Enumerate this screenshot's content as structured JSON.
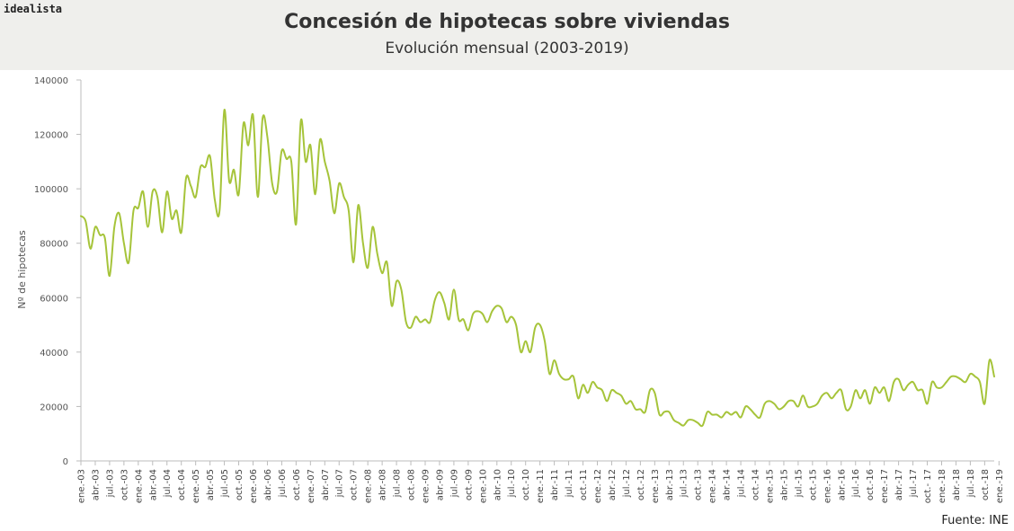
{
  "header": {
    "brand": "idealista",
    "title": "Concesión de hipotecas sobre viviendas",
    "subtitle": "Evolución mensual (2003-2019)"
  },
  "footer": {
    "source": "Fuente: INE"
  },
  "colors": {
    "line": "#a6c43a",
    "axis": "#bcbcbc",
    "header_bg": "#efefec"
  },
  "chart_data": {
    "type": "line",
    "title": "Concesión de hipotecas sobre viviendas",
    "subtitle": "Evolución mensual (2003-2019)",
    "xlabel": "",
    "ylabel": "Nº de hipotecas",
    "ylim": [
      0,
      140000
    ],
    "yticks": [
      0,
      20000,
      40000,
      60000,
      80000,
      100000,
      120000,
      140000
    ],
    "grid": false,
    "legend": "none",
    "x_tick_labels": [
      "ene.-03",
      "abr.-03",
      "jul.-03",
      "oct.-03",
      "ene.-04",
      "abr.-04",
      "jul.-04",
      "oct.-04",
      "ene.-05",
      "abr.-05",
      "jul.-05",
      "oct.-05",
      "ene.-06",
      "abr.-06",
      "jul.-06",
      "oct.-06",
      "ene.-07",
      "abr.-07",
      "jul.-07",
      "oct.-07",
      "ene.-08",
      "abr.-08",
      "jul.-08",
      "oct.-08",
      "ene.-09",
      "abr.-09",
      "jul.-09",
      "oct.-09",
      "ene.-10",
      "abr.-10",
      "jul.-10",
      "oct.-10",
      "ene.-11",
      "abr.-11",
      "jul.-11",
      "oct.-11",
      "ene.-12",
      "abr.-12",
      "jul.-12",
      "oct.-12",
      "ene.-13",
      "abr.-13",
      "jul.-13",
      "oct.-13",
      "ene.-14",
      "abr.-14",
      "jul.-14",
      "oct.-14",
      "ene.-15",
      "abr.-15",
      "jul.-15",
      "oct.-15",
      "ene.-16",
      "abr.-16",
      "jul.-16",
      "oct.-16",
      "ene.-17",
      "abr.-17",
      "jul.-17",
      "oct.- 17",
      "ene.-18",
      "abr.-18",
      "jul.-18",
      "oct.-18",
      "ene.-19"
    ],
    "series": [
      {
        "values": [
          90000,
          88000,
          78000,
          86000,
          83000,
          82000,
          68000,
          86000,
          91000,
          80000,
          73000,
          92000,
          93000,
          99000,
          86000,
          99000,
          97000,
          84000,
          99000,
          89000,
          92000,
          84000,
          104000,
          101000,
          97000,
          108000,
          108000,
          112000,
          96000,
          92000,
          129000,
          103000,
          107000,
          98000,
          124000,
          116000,
          127000,
          97000,
          126000,
          119000,
          102000,
          99000,
          114000,
          111000,
          110000,
          87000,
          125000,
          110000,
          116000,
          98000,
          118000,
          110000,
          103000,
          91000,
          102000,
          97000,
          92000,
          73000,
          94000,
          80000,
          71000,
          86000,
          76000,
          69000,
          73000,
          57000,
          66000,
          63000,
          51000,
          49000,
          53000,
          51000,
          52000,
          51000,
          59000,
          62000,
          58000,
          52000,
          63000,
          52000,
          52000,
          48000,
          54000,
          55000,
          54000,
          51000,
          55000,
          57000,
          56000,
          51000,
          53000,
          50000,
          40000,
          44000,
          40000,
          49000,
          50000,
          44000,
          32000,
          37000,
          32000,
          30000,
          30000,
          31000,
          23000,
          28000,
          25000,
          29000,
          27000,
          26000,
          22000,
          26000,
          25000,
          24000,
          21000,
          22000,
          19000,
          19000,
          18000,
          26000,
          25000,
          17000,
          18000,
          18000,
          15000,
          14000,
          13000,
          15000,
          15000,
          14000,
          13000,
          18000,
          17000,
          17000,
          16000,
          18000,
          17000,
          18000,
          16000,
          20000,
          19000,
          17000,
          16000,
          21000,
          22000,
          21000,
          19000,
          20000,
          22000,
          22000,
          20000,
          24000,
          20000,
          20000,
          21000,
          24000,
          25000,
          23000,
          25000,
          26000,
          19000,
          20000,
          26000,
          23000,
          26000,
          21000,
          27000,
          25000,
          27000,
          22000,
          29000,
          30000,
          26000,
          28000,
          29000,
          26000,
          26000,
          21000,
          29000,
          27000,
          27000,
          29000,
          31000,
          31000,
          30000,
          29000,
          32000,
          31000,
          29000,
          21000,
          37000,
          31000
        ]
      }
    ]
  }
}
